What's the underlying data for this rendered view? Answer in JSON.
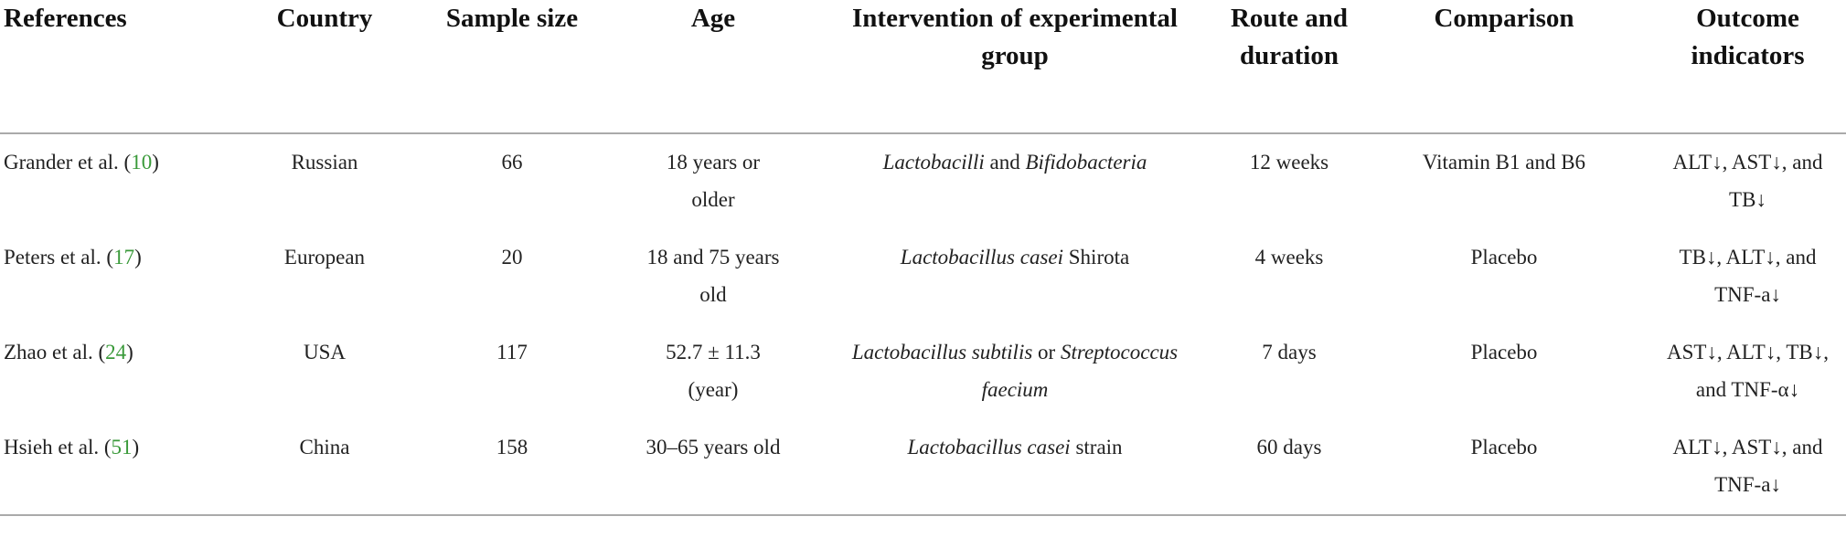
{
  "table": {
    "headers": [
      "References",
      "Country",
      "Sample size",
      "Age",
      "Intervention of experimental group",
      "Route and duration",
      "Comparison",
      "Outcome indicators"
    ],
    "rows": [
      [
        [
          {
            "text": "Grander et al. ("
          },
          {
            "text": "10",
            "link": true
          },
          {
            "text": ")"
          }
        ],
        "Russian",
        "66",
        "18 years or older",
        [
          {
            "text": "Lactobacilli",
            "italic": true
          },
          {
            "text": " and "
          },
          {
            "text": "Bifidobacteria",
            "italic": true
          }
        ],
        "12 weeks",
        "Vitamin B1 and B6",
        "ALT↓, AST↓, and TB↓"
      ],
      [
        [
          {
            "text": "Peters et al. ("
          },
          {
            "text": "17",
            "link": true
          },
          {
            "text": ")"
          }
        ],
        "European",
        "20",
        "18 and 75 years old",
        [
          {
            "text": "Lactobacillus casei",
            "italic": true
          },
          {
            "text": " Shirota"
          }
        ],
        "4 weeks",
        "Placebo",
        "TB↓, ALT↓, and TNF-a↓"
      ],
      [
        [
          {
            "text": "Zhao et al. ("
          },
          {
            "text": "24",
            "link": true
          },
          {
            "text": ")"
          }
        ],
        "USA",
        "117",
        "52.7 ± 11.3 (year)",
        [
          {
            "text": "Lactobacillus subtilis",
            "italic": true
          },
          {
            "text": " or "
          },
          {
            "text": "Streptococcus faecium",
            "italic": true
          }
        ],
        "7 days",
        "Placebo",
        "AST↓, ALT↓, TB↓, and TNF-α↓"
      ],
      [
        [
          {
            "text": "Hsieh et al. ("
          },
          {
            "text": "51",
            "link": true
          },
          {
            "text": ")"
          }
        ],
        "China",
        "158",
        "30–65 years old",
        [
          {
            "text": "Lactobacillus casei",
            "italic": true
          },
          {
            "text": " strain"
          }
        ],
        "60 days",
        "Placebo",
        "ALT↓, AST↓, and TNF-a↓"
      ]
    ]
  }
}
